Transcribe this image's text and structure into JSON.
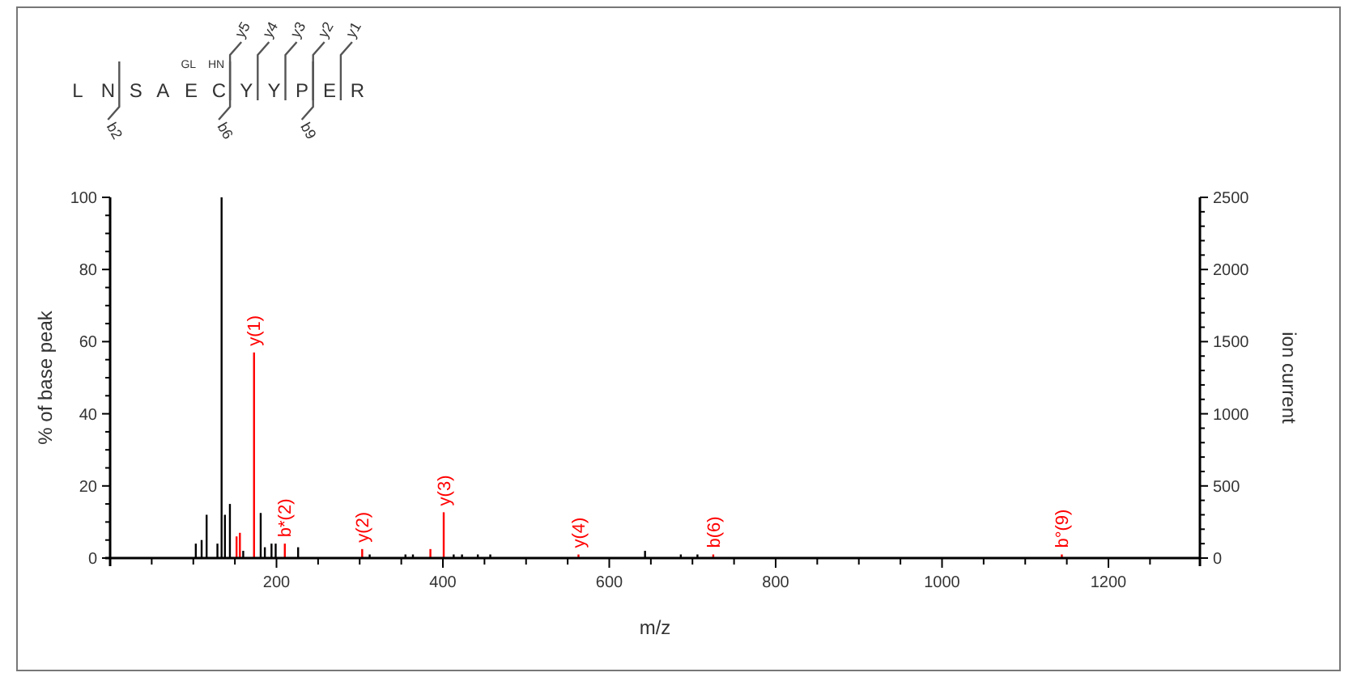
{
  "chart_data": {
    "type": "bar",
    "title": "L N S A E C Y Y P E R",
    "xlabel": "m/z",
    "ylabel": "% of base peak",
    "y2label": "ion current",
    "xlim": [
      0,
      1310
    ],
    "ylim": [
      0,
      100
    ],
    "y2lim": [
      0,
      2500
    ],
    "xticks": [
      {
        "value": 50,
        "label": null
      },
      {
        "value": 100,
        "label": null
      },
      {
        "value": 150,
        "label": null
      },
      200,
      {
        "value": 250,
        "label": null
      },
      {
        "value": 300,
        "label": null
      },
      {
        "value": 350,
        "label": null
      },
      400,
      {
        "value": 450,
        "label": null
      },
      {
        "value": 500,
        "label": null
      },
      {
        "value": 550,
        "label": null
      },
      600,
      {
        "value": 650,
        "label": null
      },
      {
        "value": 700,
        "label": null
      },
      {
        "value": 750,
        "label": null
      },
      800,
      {
        "value": 850,
        "label": null
      },
      {
        "value": 900,
        "label": null
      },
      {
        "value": 950,
        "label": null
      },
      1000,
      {
        "value": 1050,
        "label": null
      },
      {
        "value": 1100,
        "label": null
      },
      {
        "value": 1150,
        "label": null
      },
      1200,
      {
        "value": 1250,
        "label": null
      }
    ],
    "yticks": [
      0,
      {
        "value": 5,
        "label": null
      },
      {
        "value": 10,
        "label": null
      },
      {
        "value": 15,
        "label": null
      },
      20,
      {
        "value": 25,
        "label": null
      },
      {
        "value": 30,
        "label": null
      },
      {
        "value": 35,
        "label": null
      },
      40,
      {
        "value": 45,
        "label": null
      },
      {
        "value": 50,
        "label": null
      },
      {
        "value": 55,
        "label": null
      },
      60,
      {
        "value": 65,
        "label": null
      },
      {
        "value": 70,
        "label": null
      },
      {
        "value": 75,
        "label": null
      },
      80,
      {
        "value": 85,
        "label": null
      },
      {
        "value": 90,
        "label": null
      },
      {
        "value": 95,
        "label": null
      },
      100
    ],
    "y2ticks": [
      0,
      {
        "value": 100,
        "label": null
      },
      {
        "value": 200,
        "label": null
      },
      {
        "value": 300,
        "label": null
      },
      {
        "value": 400,
        "label": null
      },
      500,
      {
        "value": 600,
        "label": null
      },
      {
        "value": 700,
        "label": null
      },
      {
        "value": 800,
        "label": null
      },
      {
        "value": 900,
        "label": null
      },
      1000,
      {
        "value": 1100,
        "label": null
      },
      {
        "value": 1200,
        "label": null
      },
      {
        "value": 1300,
        "label": null
      },
      {
        "value": 1400,
        "label": null
      },
      1500,
      {
        "value": 1600,
        "label": null
      },
      {
        "value": 1700,
        "label": null
      },
      {
        "value": 1800,
        "label": null
      },
      {
        "value": 1900,
        "label": null
      },
      2000,
      {
        "value": 2100,
        "label": null
      },
      {
        "value": 2200,
        "label": null
      },
      {
        "value": 2300,
        "label": null
      },
      {
        "value": 2400,
        "label": null
      },
      2500
    ],
    "grid": false,
    "series": [
      {
        "color": "#000000",
        "x": [
          103,
          110,
          116,
          129,
          134,
          138,
          144,
          160,
          181,
          186,
          194,
          199,
          226,
          312,
          355,
          364,
          413,
          423,
          442,
          457,
          643,
          686,
          706
        ],
        "values": [
          4,
          5,
          12,
          4,
          100,
          12,
          15,
          2,
          12.5,
          3,
          4,
          4,
          3,
          1,
          1,
          1,
          1,
          1,
          1,
          1,
          2,
          1,
          1
        ]
      },
      {
        "color": "#ff0000",
        "x": [
          152,
          156,
          173,
          210,
          303,
          385,
          401,
          563,
          725,
          1144
        ],
        "values": [
          6,
          7,
          57,
          4,
          2.5,
          2.5,
          12.7,
          1,
          1,
          1
        ]
      }
    ],
    "annotations": [
      "GL",
      "HN",
      "y5",
      "y4",
      "y3",
      "y2",
      "y1",
      "b2",
      "b6",
      "b9",
      {
        "text": "y(1)",
        "x": 173,
        "y": 57
      },
      {
        "text": "b*(2)",
        "x": 210,
        "y": 4
      },
      {
        "text": "y(2)",
        "x": 303,
        "y": 2.5
      },
      {
        "text": "y(3)",
        "x": 401,
        "y": 12.7
      },
      {
        "text": "y(4)",
        "x": 563,
        "y": 1
      },
      {
        "text": "b(6)",
        "x": 725,
        "y": 1
      },
      {
        "text": "b°(9)",
        "x": 1144,
        "y": 1
      }
    ]
  }
}
